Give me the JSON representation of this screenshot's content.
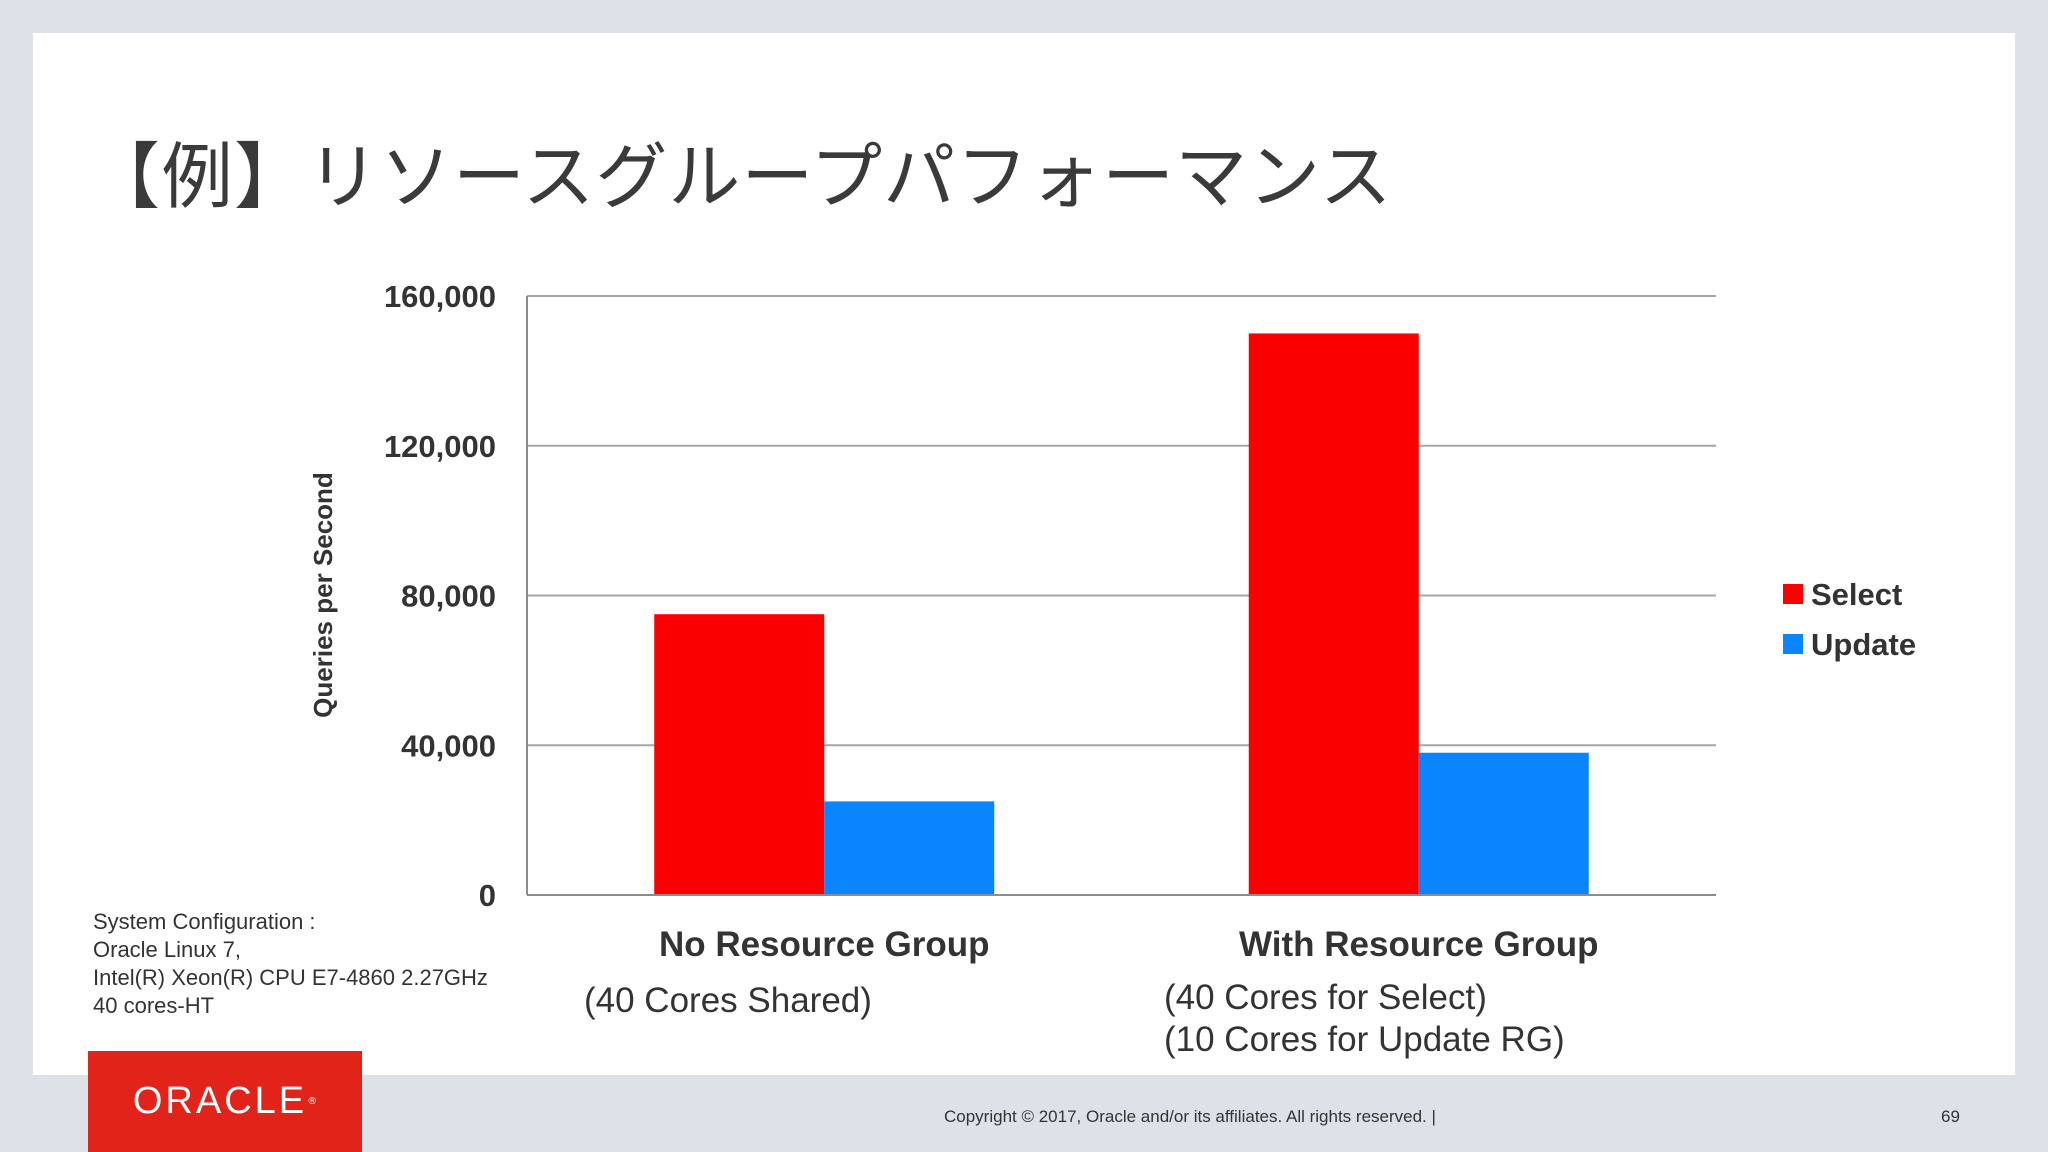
{
  "slide": {
    "title": "【例】リソースグループパフォーマンス",
    "config_lines": [
      "System Configuration :",
      "Oracle Linux 7,",
      "Intel(R) Xeon(R) CPU E7-4860 2.27GHz",
      "40 cores-HT"
    ],
    "sublabels": {
      "no_rg": "(40 Cores Shared)",
      "with_rg_1": "(40 Cores for Select)",
      "with_rg_2": "(10 Cores for Update  RG)"
    },
    "logo": "ORACLE",
    "copyright": "Copyright © 2017, Oracle and/or its affiliates. All rights reserved.  |",
    "page_number": "69"
  },
  "chart_data": {
    "type": "bar",
    "categories": [
      "No Resource Group",
      "With Resource Group"
    ],
    "series": [
      {
        "name": "Select",
        "values": [
          75000,
          150000
        ],
        "color": "#fa0000"
      },
      {
        "name": "Update",
        "values": [
          25000,
          38000
        ],
        "color": "#0a84ff"
      }
    ],
    "ylabel": "Queries per Second",
    "ylim": [
      0,
      160000
    ],
    "yticks": [
      0,
      40000,
      80000,
      120000,
      160000
    ],
    "ytick_labels": [
      "0",
      "40,000",
      "80,000",
      "120,000",
      "160,000"
    ],
    "grid": true,
    "legend": "right"
  }
}
